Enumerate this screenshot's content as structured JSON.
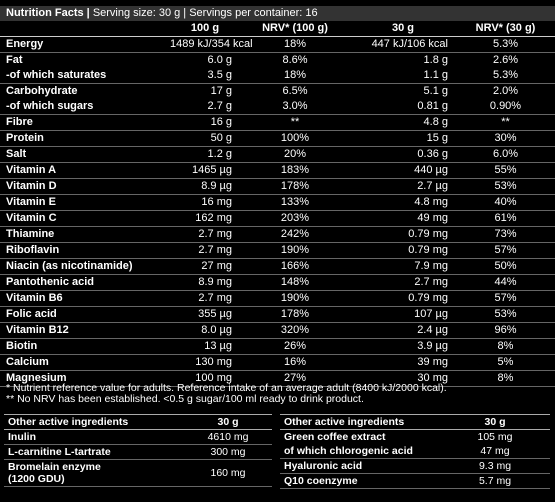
{
  "header": {
    "title": "Nutrition Facts |",
    "info": "Serving size: 30 g | Servings per container: 16"
  },
  "table": {
    "columns": [
      "100 g",
      "NRV* (100 g)",
      "30 g",
      "NRV* (30 g)"
    ],
    "groups": [
      [
        [
          "Energy",
          "1489 kJ/354 kcal",
          "18%",
          "447 kJ/106 kcal",
          "5.3%"
        ]
      ],
      [
        [
          "Fat",
          "6.0 g",
          "8.6%",
          "1.8 g",
          "2.6%"
        ],
        [
          "-of which saturates",
          "3.5 g",
          "18%",
          "1.1 g",
          "5.3%"
        ]
      ],
      [
        [
          "Carbohydrate",
          "17 g",
          "6.5%",
          "5.1 g",
          "2.0%"
        ],
        [
          "-of which sugars",
          "2.7 g",
          "3.0%",
          "0.81 g",
          "0.90%"
        ]
      ],
      [
        [
          "Fibre",
          "16 g",
          "**",
          "4.8 g",
          "**"
        ]
      ],
      [
        [
          "Protein",
          "50 g",
          "100%",
          "15 g",
          "30%"
        ]
      ],
      [
        [
          "Salt",
          "1.2 g",
          "20%",
          "0.36 g",
          "6.0%"
        ]
      ],
      [
        [
          "Vitamin A",
          "1465 µg",
          "183%",
          "440 µg",
          "55%"
        ]
      ],
      [
        [
          "Vitamin D",
          "8.9 µg",
          "178%",
          "2.7 µg",
          "53%"
        ]
      ],
      [
        [
          "Vitamin E",
          "16 mg",
          "133%",
          "4.8 mg",
          "40%"
        ]
      ],
      [
        [
          "Vitamin C",
          "162 mg",
          "203%",
          "49 mg",
          "61%"
        ]
      ],
      [
        [
          "Thiamine",
          "2.7 mg",
          "242%",
          "0.79 mg",
          "73%"
        ]
      ],
      [
        [
          "Riboflavin",
          "2.7 mg",
          "190%",
          "0.79 mg",
          "57%"
        ]
      ],
      [
        [
          "Niacin (as nicotinamide)",
          "27 mg",
          "166%",
          "7.9 mg",
          "50%"
        ]
      ],
      [
        [
          "Pantothenic acid",
          "8.9 mg",
          "148%",
          "2.7 mg",
          "44%"
        ]
      ],
      [
        [
          "Vitamin B6",
          "2.7 mg",
          "190%",
          "0.79 mg",
          "57%"
        ]
      ],
      [
        [
          "Folic acid",
          "355 µg",
          "178%",
          "107 µg",
          "53%"
        ]
      ],
      [
        [
          "Vitamin B12",
          "8.0 µg",
          "320%",
          "2.4 µg",
          "96%"
        ]
      ],
      [
        [
          "Biotin",
          "13 µg",
          "26%",
          "3.9 µg",
          "8%"
        ]
      ],
      [
        [
          "Calcium",
          "130 mg",
          "16%",
          "39 mg",
          "5%"
        ]
      ],
      [
        [
          "Magnesium",
          "100 mg",
          "27%",
          "30 mg",
          "8%"
        ]
      ]
    ]
  },
  "footnotes": [
    "* Nutrient reference value for adults. Reference intake of an average adult (8400 kJ/2000 kcal).",
    "** No NRV has been established. <0.5 g sugar/100 ml ready to drink product."
  ],
  "other_left": {
    "header": [
      "Other active ingredients",
      "30 g"
    ],
    "groups": [
      [
        [
          "Inulin",
          "4610 mg"
        ]
      ],
      [
        [
          "L-carnitine L-tartrate",
          "300 mg"
        ]
      ],
      [
        [
          "Bromelain enzyme\n(1200 GDU)",
          "160 mg"
        ]
      ]
    ]
  },
  "other_right": {
    "header": [
      "Other active ingredients",
      "30 g"
    ],
    "groups": [
      [
        [
          "Green coffee extract",
          "105 mg"
        ],
        [
          "of which chlorogenic acid",
          "47 mg"
        ]
      ],
      [
        [
          "Hyaluronic acid",
          "9.3 mg"
        ]
      ],
      [
        [
          "Q10 coenzyme",
          "5.7 mg"
        ]
      ]
    ]
  }
}
